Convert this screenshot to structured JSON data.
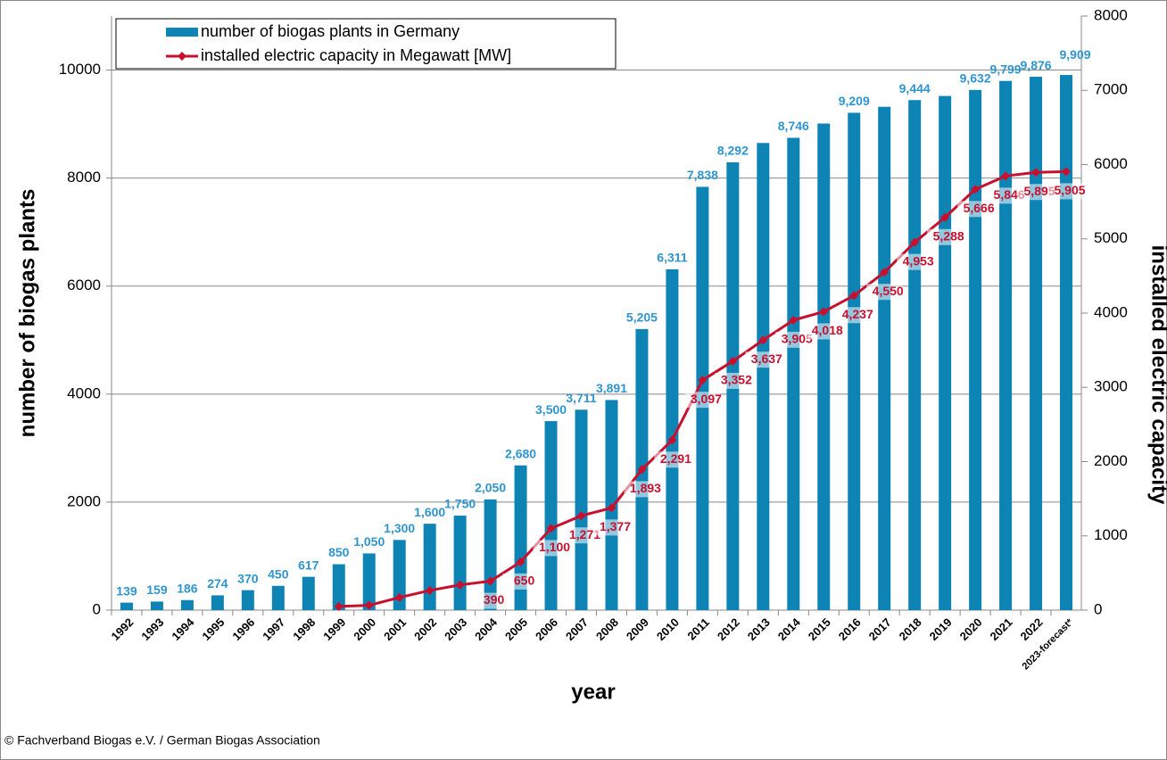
{
  "chart_data": {
    "type": "bar",
    "x_label": "year",
    "y_label": "number of biogas plants",
    "y2_label": "installed electric capacity",
    "source": "© Fachverband Biogas e.V. / German Biogas Association",
    "legend": "upper left",
    "grid": true,
    "categories": [
      "1992",
      "1993",
      "1994",
      "1995",
      "1996",
      "1997",
      "1998",
      "1999",
      "2000",
      "2001",
      "2002",
      "2003",
      "2004",
      "2005",
      "2006",
      "2007",
      "2008",
      "2009",
      "2010",
      "2011",
      "2012",
      "2013",
      "2014",
      "2015",
      "2016",
      "2017",
      "2018",
      "2019",
      "2020",
      "2021",
      "2022",
      "2023-forecast*"
    ],
    "ylim": [
      0,
      11000
    ],
    "yticks": [
      0,
      2000,
      4000,
      6000,
      8000,
      10000
    ],
    "y2lim": [
      0,
      8000
    ],
    "y2ticks": [
      0,
      1000,
      2000,
      3000,
      4000,
      5000,
      6000,
      7000,
      8000
    ],
    "series": [
      {
        "name": "number of biogas plants in Germany",
        "color": "#0e84b5",
        "type": "bar",
        "values": [
          139,
          159,
          186,
          274,
          370,
          450,
          617,
          850,
          1050,
          1300,
          1600,
          1750,
          2050,
          2680,
          3500,
          3711,
          3891,
          5205,
          6311,
          7838,
          8292,
          8650,
          8746,
          9010,
          9209,
          9320,
          9444,
          9520,
          9632,
          9799,
          9876,
          9909
        ],
        "value_labels": [
          "139",
          "159",
          "186",
          "274",
          "370",
          "450",
          "617",
          "850",
          "1,050",
          "1,300",
          "1,600",
          "1,750",
          "2,050",
          "2,680",
          "3,500",
          "3,711",
          "3,891",
          "5,205",
          "6,311",
          "7,838",
          "8,292",
          null,
          "8,746",
          null,
          "9,209",
          null,
          "9,444",
          null,
          "9,632",
          "9,799",
          "9,876",
          "9,909"
        ]
      },
      {
        "name": "installed electric capacity in Megawatt [MW]",
        "color": "#c8102e",
        "type": "line",
        "axis": "y2",
        "values": [
          null,
          null,
          null,
          null,
          null,
          null,
          null,
          50,
          65,
          170,
          265,
          340,
          390,
          650,
          1100,
          1271,
          1377,
          1893,
          2291,
          3097,
          3352,
          3637,
          3905,
          4018,
          4237,
          4550,
          4953,
          5288,
          5666,
          5846,
          5895,
          5905
        ],
        "value_labels": [
          null,
          null,
          null,
          null,
          null,
          null,
          null,
          null,
          null,
          null,
          null,
          null,
          "390",
          "650",
          "1,100",
          "1,271",
          "1,377",
          "1,893",
          "2,291",
          "3,097",
          "3,352",
          "3,637",
          "3,905",
          "4,018",
          "4,237",
          "4,550",
          "4,953",
          "5,288",
          "5,666",
          "5,846",
          "5,895",
          "5,905"
        ]
      }
    ]
  }
}
